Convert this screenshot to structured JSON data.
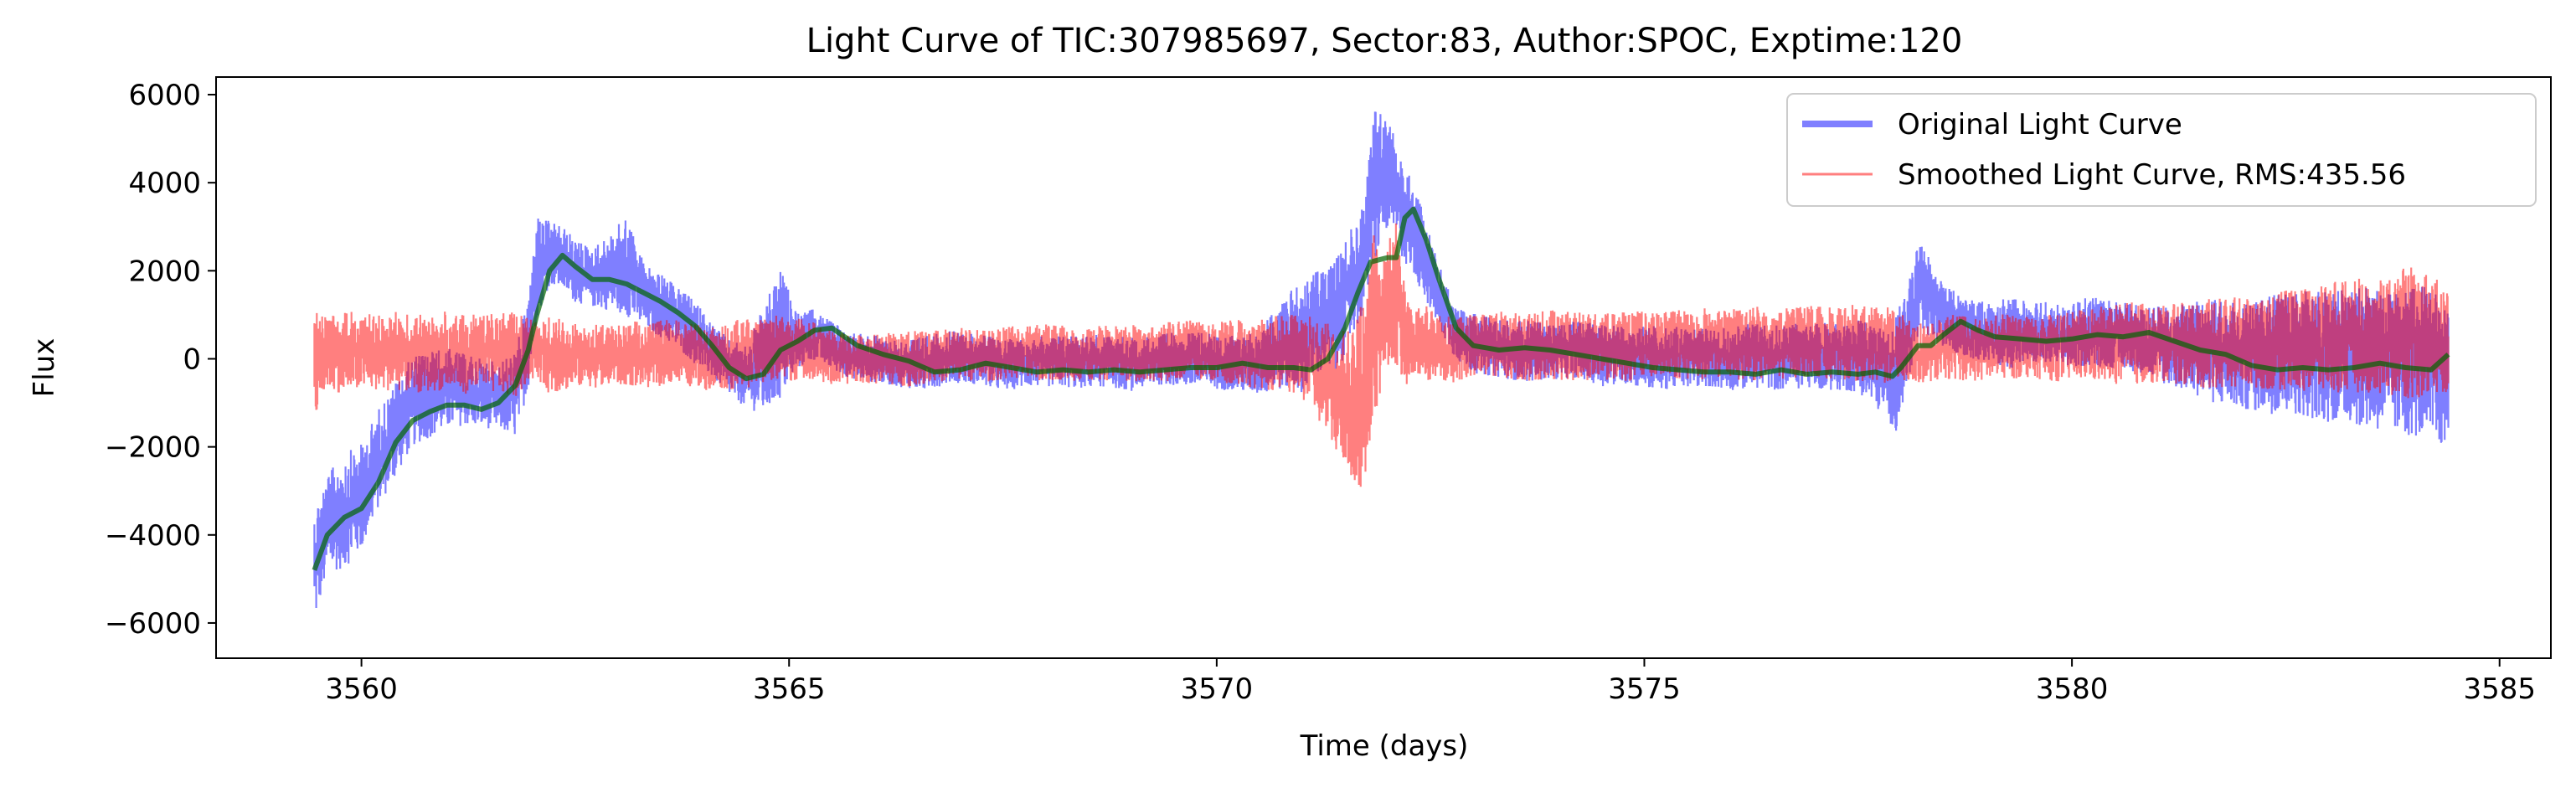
{
  "chart_data": {
    "type": "line",
    "title": "Light Curve of TIC:307985697, Sector:83, Author:SPOC, Exptime:120",
    "xlabel": "Time (days)",
    "ylabel": "Flux",
    "xlim": [
      3558.3,
      3585.6
    ],
    "ylim": [
      -6800,
      6400
    ],
    "xticks": [
      3560,
      3565,
      3570,
      3575,
      3580,
      3585
    ],
    "yticks": [
      -6000,
      -4000,
      -2000,
      0,
      2000,
      4000,
      6000
    ],
    "xtick_labels": [
      "3560",
      "3565",
      "3570",
      "3575",
      "3580",
      "3585"
    ],
    "ytick_labels": [
      "−6000",
      "−4000",
      "−2000",
      "0",
      "2000",
      "4000",
      "6000"
    ],
    "grid": false,
    "legend_position": "top-right",
    "series": [
      {
        "name": "Original Light Curve",
        "color": "#0000ff",
        "opacity": 0.5,
        "render": "band",
        "x": [
          3559.45,
          3559.6,
          3559.8,
          3560.0,
          3560.2,
          3560.4,
          3560.6,
          3560.8,
          3561.0,
          3561.2,
          3561.4,
          3561.6,
          3561.8,
          3561.95,
          3562.05,
          3562.2,
          3562.35,
          3562.5,
          3562.7,
          3562.9,
          3563.1,
          3563.3,
          3563.5,
          3563.7,
          3563.9,
          3564.1,
          3564.3,
          3564.5,
          3564.7,
          3564.9,
          3565.1,
          3565.3,
          3565.5,
          3565.7,
          3566.0,
          3566.3,
          3566.6,
          3566.9,
          3567.2,
          3567.5,
          3567.8,
          3568.1,
          3568.4,
          3568.7,
          3569.0,
          3569.3,
          3569.6,
          3569.9,
          3570.2,
          3570.5,
          3570.8,
          3571.0,
          3571.2,
          3571.4,
          3571.55,
          3571.7,
          3571.85,
          3572.0,
          3572.1,
          3572.2,
          3572.3,
          3572.45,
          3572.6,
          3572.8,
          3573.0,
          3573.3,
          3573.6,
          3573.9,
          3574.2,
          3574.5,
          3574.8,
          3575.1,
          3575.4,
          3575.7,
          3576.0,
          3576.3,
          3576.6,
          3576.9,
          3577.2,
          3577.5,
          3577.8,
          3577.95,
          3578.1,
          3578.2,
          3578.35,
          3578.5,
          3578.7,
          3578.9,
          3579.1,
          3579.3,
          3579.6,
          3579.9,
          3580.2,
          3580.5,
          3580.8,
          3581.1,
          3581.4,
          3581.7,
          3582.0,
          3582.3,
          3582.6,
          3582.9,
          3583.2,
          3583.5,
          3583.8,
          3584.1,
          3584.4
        ],
        "low": [
          -6200,
          -5000,
          -4900,
          -4500,
          -3500,
          -2800,
          -2100,
          -1900,
          -1700,
          -1600,
          -1650,
          -1700,
          -1900,
          -800,
          800,
          1600,
          1500,
          1200,
          1100,
          1000,
          850,
          600,
          400,
          150,
          -200,
          -500,
          -900,
          -1200,
          -1400,
          -1100,
          -300,
          -100,
          -300,
          -500,
          -600,
          -700,
          -800,
          -600,
          -650,
          -800,
          -700,
          -700,
          -750,
          -700,
          -800,
          -650,
          -700,
          -750,
          -800,
          -900,
          -800,
          -900,
          -500,
          -500,
          200,
          800,
          2000,
          2800,
          2500,
          2000,
          1800,
          1200,
          600,
          -100,
          -400,
          -500,
          -600,
          -550,
          -500,
          -700,
          -650,
          -800,
          -750,
          -700,
          -800,
          -750,
          -800,
          -750,
          -800,
          -850,
          -1400,
          -1800,
          -500,
          200,
          400,
          200,
          0,
          -100,
          -200,
          -300,
          -200,
          -300,
          -250,
          -300,
          -400,
          -700,
          -900,
          -1200,
          -1300,
          -1400,
          -1400,
          -1600,
          -1600,
          -1800,
          -1900,
          -2000,
          -2300
        ],
        "high": [
          -3200,
          -2500,
          -2000,
          -1800,
          -1000,
          -400,
          200,
          300,
          350,
          200,
          100,
          0,
          300,
          1500,
          3400,
          3200,
          3100,
          2800,
          2600,
          2900,
          3400,
          2300,
          2000,
          1700,
          1400,
          900,
          500,
          400,
          1300,
          2200,
          1100,
          1200,
          900,
          700,
          600,
          500,
          600,
          700,
          650,
          500,
          550,
          600,
          650,
          600,
          550,
          600,
          700,
          650,
          600,
          700,
          1600,
          1900,
          2200,
          2500,
          3000,
          3600,
          5900,
          5600,
          5100,
          4700,
          4200,
          3200,
          2200,
          1300,
          1100,
          1000,
          950,
          900,
          950,
          850,
          800,
          850,
          800,
          750,
          800,
          900,
          850,
          900,
          900,
          1000,
          800,
          1200,
          1900,
          2900,
          2300,
          1800,
          1500,
          1400,
          1400,
          1500,
          1400,
          1300,
          1500,
          1400,
          1300,
          1300,
          1400,
          1500,
          1500,
          1600,
          1700,
          1700,
          1800,
          1800,
          1700,
          1900,
          1500
        ]
      },
      {
        "name": "Smoothed Light Curve, RMS:435.56",
        "color": "#ff0000",
        "opacity": 0.5,
        "render": "band",
        "x": [
          3559.45,
          3559.6,
          3559.8,
          3560.0,
          3560.2,
          3560.4,
          3560.6,
          3560.8,
          3561.0,
          3561.2,
          3561.4,
          3561.6,
          3561.8,
          3561.95,
          3562.05,
          3562.2,
          3562.4,
          3562.6,
          3562.8,
          3563.0,
          3563.2,
          3563.4,
          3563.6,
          3563.8,
          3564.0,
          3564.2,
          3564.4,
          3564.6,
          3564.8,
          3565.0,
          3565.2,
          3565.5,
          3565.8,
          3566.1,
          3566.4,
          3566.7,
          3567.0,
          3567.3,
          3567.6,
          3567.9,
          3568.2,
          3568.5,
          3568.8,
          3569.1,
          3569.4,
          3569.7,
          3570.0,
          3570.3,
          3570.6,
          3570.9,
          3571.1,
          3571.3,
          3571.5,
          3571.65,
          3571.75,
          3571.85,
          3572.0,
          3572.1,
          3572.2,
          3572.3,
          3572.45,
          3572.6,
          3572.8,
          3573.0,
          3573.3,
          3573.6,
          3573.9,
          3574.2,
          3574.5,
          3574.8,
          3575.1,
          3575.4,
          3575.7,
          3576.0,
          3576.3,
          3576.6,
          3576.9,
          3577.2,
          3577.5,
          3577.8,
          3577.95,
          3578.1,
          3578.3,
          3578.6,
          3578.9,
          3579.2,
          3579.5,
          3579.8,
          3580.1,
          3580.4,
          3580.7,
          3581.0,
          3581.3,
          3581.6,
          3581.9,
          3582.2,
          3582.5,
          3582.8,
          3583.1,
          3583.4,
          3583.7,
          3584.0,
          3584.4
        ],
        "low": [
          -1400,
          -800,
          -900,
          -800,
          -850,
          -800,
          -900,
          -850,
          -800,
          -900,
          -850,
          -900,
          -1000,
          -600,
          -500,
          -900,
          -800,
          -700,
          -750,
          -700,
          -700,
          -750,
          -650,
          -700,
          -800,
          -750,
          -800,
          -700,
          -650,
          -600,
          -500,
          -700,
          -600,
          -650,
          -700,
          -600,
          -550,
          -600,
          -500,
          -600,
          -550,
          -600,
          -550,
          -600,
          -600,
          -550,
          -600,
          -700,
          -800,
          -900,
          -1200,
          -2000,
          -2500,
          -3700,
          -2800,
          -1500,
          -300,
          -300,
          -900,
          -500,
          -600,
          -700,
          -600,
          -550,
          -500,
          -600,
          -550,
          -600,
          -550,
          -600,
          -500,
          -550,
          -600,
          -550,
          -600,
          -550,
          -500,
          -550,
          -600,
          -700,
          -600,
          -700,
          -600,
          -550,
          -600,
          -550,
          -500,
          -600,
          -550,
          -650,
          -700,
          -650,
          -700,
          -800,
          -750,
          -800,
          -850,
          -900,
          -950,
          -900,
          -1000,
          -1100,
          -900
        ],
        "high": [
          1200,
          1100,
          1200,
          1150,
          1100,
          1200,
          1150,
          1100,
          1200,
          1150,
          1100,
          1200,
          1150,
          1000,
          900,
          1100,
          1000,
          900,
          850,
          900,
          950,
          900,
          1000,
          900,
          850,
          800,
          1000,
          1000,
          1100,
          1000,
          1000,
          700,
          600,
          650,
          700,
          700,
          800,
          750,
          800,
          850,
          900,
          800,
          900,
          850,
          900,
          950,
          900,
          1000,
          1050,
          1100,
          1100,
          1000,
          900,
          1200,
          2000,
          3200,
          2800,
          3400,
          1700,
          1200,
          1300,
          1100,
          1000,
          1100,
          1200,
          1150,
          1200,
          1150,
          1100,
          1200,
          1150,
          1200,
          1250,
          1200,
          1300,
          1250,
          1300,
          1250,
          1350,
          1300,
          1200,
          1000,
          900,
          1100,
          1000,
          1100,
          1050,
          1100,
          1200,
          1300,
          1400,
          1300,
          1400,
          1500,
          1600,
          1500,
          1700,
          1800,
          1900,
          2000,
          2100,
          2300,
          1800
        ]
      },
      {
        "color": "#006400",
        "opacity": 0.7,
        "render": "line",
        "x": [
          3559.45,
          3559.6,
          3559.8,
          3560.0,
          3560.2,
          3560.4,
          3560.6,
          3560.8,
          3561.0,
          3561.2,
          3561.4,
          3561.6,
          3561.8,
          3561.95,
          3562.05,
          3562.2,
          3562.35,
          3562.5,
          3562.7,
          3562.9,
          3563.1,
          3563.3,
          3563.5,
          3563.7,
          3563.9,
          3564.1,
          3564.3,
          3564.5,
          3564.7,
          3564.9,
          3565.1,
          3565.3,
          3565.5,
          3565.8,
          3566.1,
          3566.4,
          3566.7,
          3567.0,
          3567.3,
          3567.6,
          3567.9,
          3568.2,
          3568.5,
          3568.8,
          3569.1,
          3569.4,
          3569.7,
          3570.0,
          3570.3,
          3570.6,
          3570.9,
          3571.1,
          3571.3,
          3571.5,
          3571.65,
          3571.8,
          3572.0,
          3572.1,
          3572.2,
          3572.3,
          3572.45,
          3572.6,
          3572.8,
          3573.0,
          3573.3,
          3573.6,
          3573.9,
          3574.2,
          3574.5,
          3574.8,
          3575.1,
          3575.4,
          3575.7,
          3576.0,
          3576.3,
          3576.6,
          3576.9,
          3577.2,
          3577.5,
          3577.7,
          3577.9,
          3578.0,
          3578.2,
          3578.35,
          3578.5,
          3578.7,
          3578.9,
          3579.1,
          3579.4,
          3579.7,
          3580.0,
          3580.3,
          3580.6,
          3580.9,
          3581.2,
          3581.5,
          3581.8,
          3582.1,
          3582.4,
          3582.7,
          3583.0,
          3583.3,
          3583.6,
          3583.9,
          3584.2,
          3584.4
        ],
        "values": [
          -4800,
          -4000,
          -3600,
          -3400,
          -2800,
          -1900,
          -1400,
          -1200,
          -1050,
          -1050,
          -1150,
          -1000,
          -600,
          200,
          1000,
          2000,
          2350,
          2100,
          1800,
          1800,
          1700,
          1500,
          1300,
          1050,
          750,
          300,
          -200,
          -450,
          -350,
          200,
          400,
          650,
          700,
          300,
          100,
          -50,
          -300,
          -250,
          -100,
          -200,
          -300,
          -250,
          -300,
          -250,
          -300,
          -250,
          -200,
          -200,
          -100,
          -200,
          -200,
          -250,
          0,
          700,
          1500,
          2200,
          2300,
          2300,
          3200,
          3400,
          2700,
          1800,
          700,
          300,
          200,
          250,
          200,
          100,
          0,
          -100,
          -200,
          -250,
          -300,
          -300,
          -350,
          -250,
          -350,
          -300,
          -350,
          -300,
          -400,
          -200,
          300,
          300,
          550,
          850,
          650,
          500,
          450,
          400,
          450,
          550,
          500,
          600,
          400,
          200,
          100,
          -150,
          -250,
          -200,
          -250,
          -200,
          -100,
          -200,
          -250,
          100
        ]
      }
    ]
  }
}
